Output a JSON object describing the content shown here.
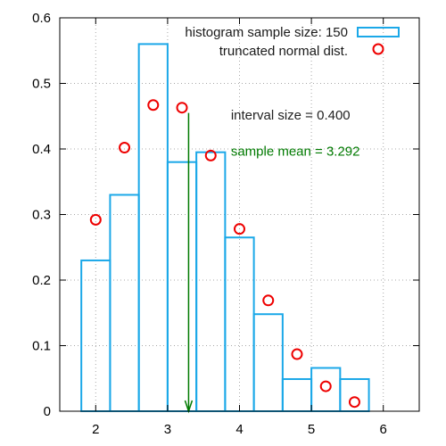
{
  "chart_data": {
    "type": "bar",
    "title": "",
    "xlabel": "",
    "ylabel": "",
    "xlim": [
      1.5,
      6.5
    ],
    "ylim": [
      0,
      0.6
    ],
    "grid": true,
    "legend_position": "top-right",
    "x_ticks": [
      2,
      3,
      4,
      5,
      6
    ],
    "x_tick_labels": [
      "2",
      "3",
      "4",
      "5",
      "6"
    ],
    "y_ticks": [
      0,
      0.1,
      0.2,
      0.3,
      0.4,
      0.5,
      0.6
    ],
    "y_tick_labels": [
      "0",
      "0.1",
      "0.2",
      "0.3",
      "0.4",
      "0.5",
      "0.6"
    ],
    "series": [
      {
        "name": "histogram sample size: 150",
        "type": "bar",
        "color": "#1ba8e8",
        "bins": [
          {
            "start": 1.8,
            "end": 2.2,
            "value": 0.23
          },
          {
            "start": 2.2,
            "end": 2.6,
            "value": 0.33
          },
          {
            "start": 2.6,
            "end": 3.0,
            "value": 0.56
          },
          {
            "start": 3.0,
            "end": 3.4,
            "value": 0.38
          },
          {
            "start": 3.4,
            "end": 3.8,
            "value": 0.395
          },
          {
            "start": 3.8,
            "end": 4.2,
            "value": 0.265
          },
          {
            "start": 4.2,
            "end": 4.6,
            "value": 0.148
          },
          {
            "start": 4.6,
            "end": 5.0,
            "value": 0.049
          },
          {
            "start": 5.0,
            "end": 5.4,
            "value": 0.066
          },
          {
            "start": 5.4,
            "end": 5.8,
            "value": 0.049
          }
        ]
      },
      {
        "name": "truncated normal dist.",
        "type": "scatter",
        "color": "#ee0000",
        "points": [
          {
            "x": 2.0,
            "y": 0.292
          },
          {
            "x": 2.4,
            "y": 0.402
          },
          {
            "x": 2.8,
            "y": 0.467
          },
          {
            "x": 3.2,
            "y": 0.463
          },
          {
            "x": 3.6,
            "y": 0.39
          },
          {
            "x": 4.0,
            "y": 0.278
          },
          {
            "x": 4.4,
            "y": 0.169
          },
          {
            "x": 4.8,
            "y": 0.087
          },
          {
            "x": 5.2,
            "y": 0.038
          },
          {
            "x": 5.6,
            "y": 0.014
          }
        ]
      }
    ],
    "mean_arrow": {
      "x": 3.292,
      "y_from": 0.455,
      "y_to": 0.0,
      "color": "#007a00"
    },
    "annotations": [
      {
        "text": "interval size = 0.400",
        "x": 3.88,
        "y": 0.445,
        "color": "#222222"
      },
      {
        "text": "sample mean = 3.292",
        "x": 3.88,
        "y": 0.39,
        "color": "#007a00"
      }
    ]
  }
}
